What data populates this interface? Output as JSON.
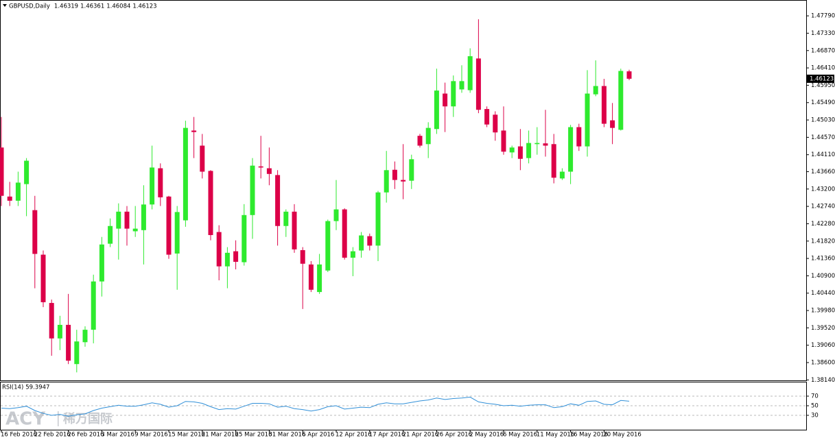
{
  "chart_data": {
    "type": "candlestick",
    "title": "GBPUSD,Daily",
    "categories": [
      "16 Feb 2016",
      null,
      null,
      null,
      "22 Feb 2016",
      null,
      null,
      null,
      "26 Feb 2016",
      null,
      null,
      null,
      "3 Mar 2016",
      null,
      null,
      null,
      "9 Mar 2016",
      null,
      null,
      null,
      "15 Mar 2016",
      null,
      null,
      null,
      "21 Mar 2016",
      null,
      null,
      null,
      "25 Mar 2016",
      null,
      null,
      null,
      "31 Mar 2016",
      null,
      null,
      null,
      "6 Apr 2016",
      null,
      null,
      null,
      "12 Apr 2016",
      null,
      null,
      null,
      "17 Apr 2016",
      null,
      null,
      null,
      "21 Apr 2016",
      null,
      null,
      null,
      "26 Apr 2016",
      null,
      null,
      null,
      "2 May 2016",
      null,
      null,
      null,
      "6 May 2016",
      null,
      null,
      null,
      "11 May 2016",
      null,
      null,
      null,
      "16 May 2016",
      null,
      null,
      null,
      "20 May 2016",
      null,
      null,
      null
    ],
    "open": [
      1.443,
      1.43,
      1.4289,
      1.4333,
      1.4264,
      1.4146,
      1.4018,
      1.3924,
      1.396,
      1.3856,
      1.3914,
      1.3947,
      1.4075,
      1.4175,
      1.4215,
      1.426,
      1.4208,
      1.4211,
      1.4279,
      1.4375,
      1.43,
      1.4149,
      1.4237,
      1.4475,
      1.4435,
      1.4368,
      1.4206,
      1.4115,
      1.4155,
      1.4126,
      1.4251,
      1.438,
      1.4375,
      1.4357,
      1.4222,
      1.426,
      1.4158,
      1.412,
      1.4047,
      1.4104,
      1.4235,
      1.4266,
      1.4138,
      1.4157,
      1.4195,
      1.417,
      1.4311,
      1.4371,
      1.4344,
      1.4342,
      1.4461,
      1.4439,
      1.4479,
      1.4573,
      1.4539,
      1.4584,
      1.4582,
      1.4666,
      1.4532,
      1.4517,
      1.4475,
      1.4417,
      1.4433,
      1.4402,
      1.4439,
      1.4441,
      1.4439,
      1.4348,
      1.4366,
      1.4484,
      1.4433,
      1.4571,
      1.4593,
      1.4502,
      1.4477,
      1.46319
    ],
    "high": [
      1.4511,
      1.4339,
      1.4366,
      1.4402,
      1.4302,
      1.4157,
      1.4027,
      1.3984,
      1.4042,
      1.3947,
      1.3956,
      1.4093,
      1.4193,
      1.4242,
      1.4282,
      1.4275,
      1.4275,
      1.433,
      1.4435,
      1.4388,
      1.4302,
      1.4275,
      1.4501,
      1.4511,
      1.4466,
      1.437,
      1.4224,
      1.4166,
      1.4184,
      1.428,
      1.4402,
      1.4461,
      1.443,
      1.437,
      1.4266,
      1.428,
      1.4166,
      1.4129,
      1.4148,
      1.4239,
      1.4344,
      1.4269,
      1.4166,
      1.4206,
      1.4202,
      1.4315,
      1.4421,
      1.4393,
      1.4439,
      1.4411,
      1.4466,
      1.4497,
      1.4639,
      1.4602,
      1.4621,
      1.4648,
      1.4693,
      1.477,
      1.4539,
      1.4526,
      1.4539,
      1.4435,
      1.4479,
      1.4475,
      1.4484,
      1.453,
      1.4466,
      1.4375,
      1.449,
      1.4493,
      1.4635,
      1.4661,
      1.4612,
      1.4548,
      1.4639,
      1.46361
    ],
    "low": [
      1.4275,
      1.4275,
      1.4275,
      1.4248,
      1.4057,
      1.4007,
      1.3878,
      1.3893,
      1.3856,
      1.3834,
      1.3902,
      1.3911,
      1.4035,
      1.4166,
      1.4133,
      1.417,
      1.4193,
      1.412,
      1.4266,
      1.4275,
      1.4135,
      1.4053,
      1.422,
      1.4402,
      1.4348,
      1.4184,
      1.4078,
      1.4057,
      1.4107,
      1.4117,
      1.4188,
      1.4348,
      1.433,
      1.417,
      1.4193,
      1.4151,
      1.4002,
      1.4047,
      1.4042,
      1.41,
      1.4211,
      1.4133,
      1.4089,
      1.4138,
      1.4157,
      1.4129,
      1.4284,
      1.432,
      1.4293,
      1.432,
      1.443,
      1.4402,
      1.4466,
      1.4471,
      1.4511,
      1.4575,
      1.4575,
      1.4521,
      1.4484,
      1.4448,
      1.4411,
      1.4402,
      1.437,
      1.4388,
      1.4411,
      1.4406,
      1.4335,
      1.4344,
      1.4333,
      1.4421,
      1.4406,
      1.4566,
      1.4484,
      1.4439,
      1.4475,
      1.46084
    ],
    "close": [
      1.4302,
      1.4289,
      1.4337,
      1.4395,
      1.4148,
      1.402,
      1.3924,
      1.396,
      1.3865,
      1.3916,
      1.3947,
      1.4075,
      1.4173,
      1.4222,
      1.426,
      1.4215,
      1.4215,
      1.4279,
      1.4377,
      1.4298,
      1.4146,
      1.4259,
      1.4482,
      1.4471,
      1.4366,
      1.4198,
      1.4115,
      1.4151,
      1.4127,
      1.4251,
      1.4382,
      1.4377,
      1.436,
      1.4222,
      1.426,
      1.416,
      1.4122,
      1.4053,
      1.412,
      1.4235,
      1.4266,
      1.4138,
      1.4155,
      1.4197,
      1.417,
      1.4311,
      1.437,
      1.4344,
      1.434,
      1.4399,
      1.4435,
      1.4482,
      1.4581,
      1.4539,
      1.4606,
      1.4606,
      1.4672,
      1.453,
      1.4491,
      1.447,
      1.4419,
      1.443,
      1.44,
      1.4442,
      1.4442,
      1.4435,
      1.435,
      1.4366,
      1.4484,
      1.4433,
      1.4573,
      1.4593,
      1.4493,
      1.4482,
      1.4633,
      1.46123
    ],
    "bull_color": "#2eea2e",
    "bear_color": "#dc0048",
    "ylim": [
      1.3811,
      1.4821
    ],
    "yticks": [
      {
        "value": 1.4779,
        "label": "1.47790"
      },
      {
        "value": 1.4733,
        "label": "1.47330"
      },
      {
        "value": 1.4687,
        "label": "1.46870"
      },
      {
        "value": 1.4641,
        "label": "1.46410"
      },
      {
        "value": 1.4595,
        "label": "1.45950"
      },
      {
        "value": 1.4549,
        "label": "1.45490"
      },
      {
        "value": 1.4503,
        "label": "1.45030"
      },
      {
        "value": 1.4457,
        "label": "1.44570"
      },
      {
        "value": 1.4411,
        "label": "1.44110"
      },
      {
        "value": 1.4366,
        "label": "1.43660"
      },
      {
        "value": 1.432,
        "label": "1.43200"
      },
      {
        "value": 1.4274,
        "label": "1.42740"
      },
      {
        "value": 1.4228,
        "label": "1.42280"
      },
      {
        "value": 1.4182,
        "label": "1.41820"
      },
      {
        "value": 1.4136,
        "label": "1.41360"
      },
      {
        "value": 1.409,
        "label": "1.40900"
      },
      {
        "value": 1.4044,
        "label": "1.40440"
      },
      {
        "value": 1.3998,
        "label": "1.39980"
      },
      {
        "value": 1.3952,
        "label": "1.39520"
      },
      {
        "value": 1.3906,
        "label": "1.39060"
      },
      {
        "value": 1.386,
        "label": "1.38600"
      },
      {
        "value": 1.3814,
        "label": "1.38140"
      }
    ]
  },
  "indicator": {
    "type": "line",
    "name": "RSI(14)",
    "color": "#2f8fd8",
    "values": [
      45,
      44,
      46,
      49,
      40,
      34,
      30,
      32,
      28,
      31,
      33,
      40,
      45,
      48,
      51,
      49,
      49,
      52,
      56,
      53,
      47,
      50,
      59,
      58,
      55,
      48,
      42,
      44,
      43,
      49,
      55,
      55,
      54,
      47,
      49,
      44,
      42,
      39,
      42,
      48,
      50,
      43,
      45,
      47,
      46,
      53,
      56,
      54,
      54,
      57,
      60,
      62,
      66,
      63,
      65,
      66,
      68,
      58,
      55,
      53,
      50,
      51,
      49,
      51,
      52,
      52,
      46,
      48,
      54,
      51,
      59,
      60,
      53,
      52,
      61,
      59.3947
    ],
    "ylim": [
      0,
      100
    ],
    "yticks": [
      70,
      50,
      30
    ]
  },
  "watermark": {
    "brand": "ACY",
    "name": "稀万国际"
  }
}
